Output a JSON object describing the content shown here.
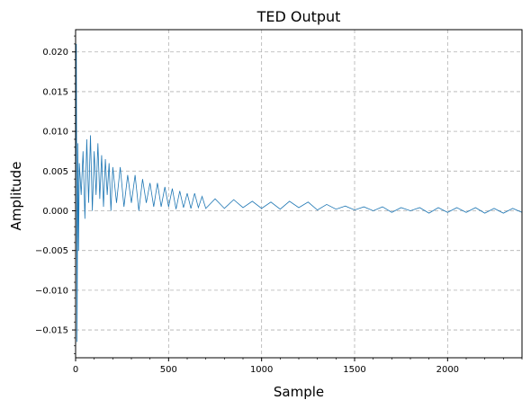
{
  "chart_data": {
    "type": "line",
    "title": "TED Output",
    "xlabel": "Sample",
    "ylabel": "Amplitude",
    "xlim": [
      0,
      2400
    ],
    "ylim": [
      -0.0185,
      0.0228
    ],
    "x_ticks": [
      0,
      500,
      1000,
      1500,
      2000
    ],
    "x_tick_labels": [
      "0",
      "500",
      "1000",
      "1500",
      "2000"
    ],
    "y_ticks": [
      -0.015,
      -0.01,
      -0.005,
      0.0,
      0.005,
      0.01,
      0.015,
      0.02
    ],
    "y_tick_labels": [
      "−0.015",
      "−0.010",
      "−0.005",
      "0.000",
      "0.005",
      "0.010",
      "0.015",
      "0.020"
    ],
    "grid": true,
    "grid_style": "dashed",
    "series": [
      {
        "color": "#1f77b4",
        "x": [
          0,
          4,
          8,
          12,
          16,
          20,
          30,
          40,
          50,
          60,
          70,
          80,
          90,
          100,
          110,
          120,
          130,
          140,
          150,
          160,
          170,
          180,
          190,
          200,
          220,
          240,
          260,
          280,
          300,
          320,
          340,
          360,
          380,
          400,
          420,
          440,
          460,
          480,
          500,
          520,
          540,
          560,
          580,
          600,
          620,
          640,
          660,
          680,
          700,
          750,
          800,
          850,
          900,
          950,
          1000,
          1050,
          1100,
          1150,
          1200,
          1250,
          1300,
          1350,
          1400,
          1450,
          1500,
          1550,
          1600,
          1650,
          1700,
          1750,
          1800,
          1850,
          1900,
          1950,
          2000,
          2050,
          2100,
          2150,
          2200,
          2250,
          2300,
          2350,
          2400
        ],
        "values": [
          0.0,
          0.021,
          -0.0165,
          0.0085,
          -0.005,
          0.006,
          0.002,
          0.0075,
          -0.001,
          0.009,
          0.001,
          0.0095,
          0.0,
          0.0075,
          0.002,
          0.0085,
          0.0015,
          0.007,
          0.0005,
          0.0065,
          0.002,
          0.006,
          0.0,
          0.0055,
          0.001,
          0.0055,
          0.0005,
          0.0045,
          0.001,
          0.0045,
          0.0,
          0.004,
          0.001,
          0.0035,
          0.0005,
          0.0035,
          0.0005,
          0.003,
          0.0005,
          0.0028,
          0.0002,
          0.0025,
          0.0004,
          0.0022,
          0.0003,
          0.0022,
          0.0004,
          0.0018,
          0.0003,
          0.0015,
          0.0003,
          0.0014,
          0.0004,
          0.0012,
          0.0003,
          0.0011,
          0.0002,
          0.0012,
          0.0004,
          0.0011,
          0.0001,
          0.0008,
          0.0002,
          0.0006,
          0.0001,
          0.0005,
          0.0,
          0.0005,
          -0.0002,
          0.0004,
          0.0,
          0.0004,
          -0.0003,
          0.0004,
          -0.0002,
          0.0004,
          -0.0002,
          0.0004,
          -0.0003,
          0.0003,
          -0.0003,
          0.0003,
          -0.0002
        ]
      }
    ]
  }
}
